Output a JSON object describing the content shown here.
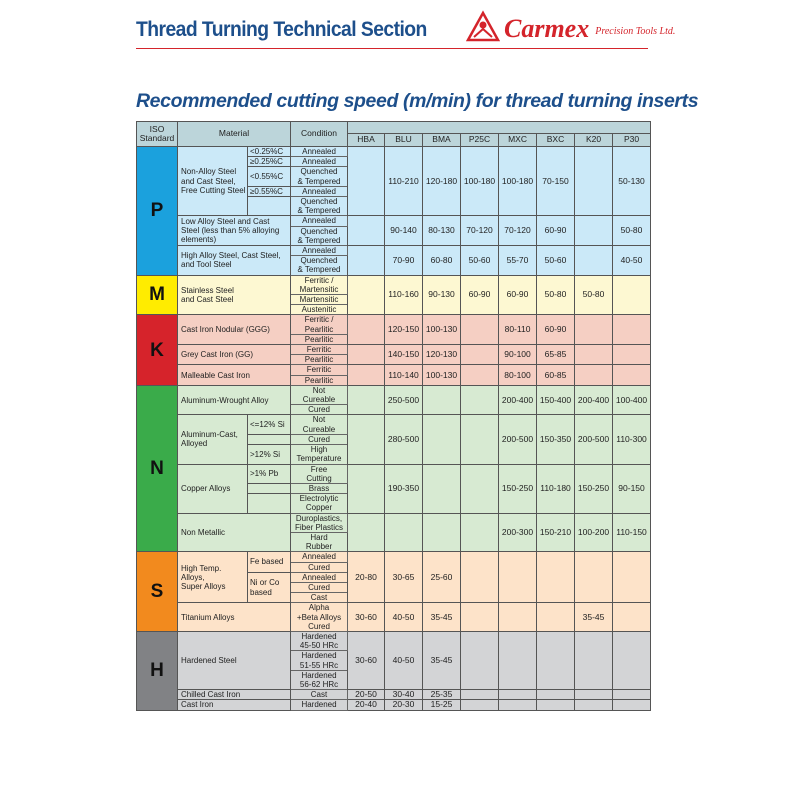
{
  "header": {
    "title": "Thread Turning Technical Section",
    "logo_name": "Carmex",
    "logo_sub": "Precision Tools Ltd."
  },
  "heading": "Recommended cutting speed (m/min) for thread turning inserts",
  "table": {
    "col_iso": "ISO\nStandard",
    "col_material": "Material",
    "col_condition": "Condition",
    "grades": [
      "HBA",
      "BLU",
      "BMA",
      "P25C",
      "MXC",
      "BXC",
      "K20",
      "P30"
    ],
    "groups": [
      {
        "iso": "P",
        "color": "#1ba1dd",
        "bg": "#cbe9f8",
        "materials": [
          {
            "name": "Non-Alloy Steel\nand Cast Steel,\nFree Cutting Steel",
            "subs": [
              {
                "label": "<0.25%C",
                "conditions": [
                  "Annealed"
                ]
              },
              {
                "label": "≥0.25%C",
                "conditions": [
                  "Annealed"
                ]
              },
              {
                "label": "<0.55%C",
                "conditions": [
                  "Quenched\n& Tempered"
                ]
              },
              {
                "label": "≥0.55%C",
                "conditions": [
                  "Annealed"
                ]
              },
              {
                "label": "",
                "conditions": [
                  "Quenched\n& Tempered"
                ]
              }
            ],
            "speeds": [
              "",
              "110-210",
              "120-180",
              "100-180",
              "100-180",
              "70-150",
              "",
              "50-130"
            ]
          },
          {
            "name": "Low Alloy Steel and Cast\nSteel (less than 5% alloying\nelements)",
            "conditions": [
              "Annealed",
              "Quenched\n& Tempered"
            ],
            "speeds": [
              "",
              "90-140",
              "80-130",
              "70-120",
              "70-120",
              "60-90",
              "",
              "50-80"
            ]
          },
          {
            "name": "High Alloy Steel, Cast Steel,\nand Tool Steel",
            "conditions": [
              "Annealed",
              "Quenched\n& Tempered"
            ],
            "speeds": [
              "",
              "70-90",
              "60-80",
              "50-60",
              "55-70",
              "50-60",
              "",
              "40-50"
            ]
          }
        ]
      },
      {
        "iso": "M",
        "color": "#ffec00",
        "bg": "#fdf8d2",
        "materials": [
          {
            "name": "Stainless Steel\nand Cast Steel",
            "conditions": [
              "Ferritic /\nMartensitic",
              "Martensitic",
              "Austenitic"
            ],
            "speeds": [
              "",
              "110-160",
              "90-130",
              "60-90",
              "60-90",
              "50-80",
              "50-80",
              ""
            ]
          }
        ]
      },
      {
        "iso": "K",
        "color": "#d6232b",
        "bg": "#f5cfc3",
        "materials": [
          {
            "name": "Cast Iron Nodular (GGG)",
            "conditions": [
              "Ferritic /\nPearlitic",
              "Pearlitic"
            ],
            "speeds": [
              "",
              "120-150",
              "100-130",
              "",
              "80-110",
              "60-90",
              "",
              ""
            ]
          },
          {
            "name": "Grey Cast Iron (GG)",
            "conditions": [
              "Ferritic",
              "Pearlitic"
            ],
            "speeds": [
              "",
              "140-150",
              "120-130",
              "",
              "90-100",
              "65-85",
              "",
              ""
            ]
          },
          {
            "name": "Malleable Cast Iron",
            "conditions": [
              "Ferritic",
              "Pearlitic"
            ],
            "speeds": [
              "",
              "110-140",
              "100-130",
              "",
              "80-100",
              "60-85",
              "",
              ""
            ]
          }
        ]
      },
      {
        "iso": "N",
        "color": "#3aab4a",
        "bg": "#d7ead2",
        "materials": [
          {
            "name": "Aluminum-Wrought Alloy",
            "conditions": [
              "Not\nCureable",
              "Cured"
            ],
            "speeds": [
              "",
              "250-500",
              "",
              "",
              "200-400",
              "150-400",
              "200-400",
              "100-400"
            ]
          },
          {
            "name": "Aluminum-Cast,\nAlloyed",
            "subs": [
              {
                "label": "<=12% Si",
                "conditions": [
                  "Not\nCureable"
                ]
              },
              {
                "label": "",
                "conditions": [
                  "Cured"
                ]
              },
              {
                "label": ">12% Si",
                "conditions": [
                  "High\nTemperature"
                ]
              }
            ],
            "speeds": [
              "",
              "280-500",
              "",
              "",
              "200-500",
              "150-350",
              "200-500",
              "110-300"
            ]
          },
          {
            "name": "Copper Alloys",
            "subs": [
              {
                "label": ">1% Pb",
                "conditions": [
                  "Free\nCutting"
                ]
              },
              {
                "label": "",
                "conditions": [
                  "Brass"
                ]
              },
              {
                "label": "",
                "conditions": [
                  "Electrolytic\nCopper"
                ]
              }
            ],
            "speeds": [
              "",
              "190-350",
              "",
              "",
              "150-250",
              "110-180",
              "150-250",
              "90-150"
            ]
          },
          {
            "name": "Non Metallic",
            "conditions": [
              "Duroplastics,\nFiber Plastics",
              "Hard\nRubber"
            ],
            "speeds": [
              "",
              "",
              "",
              "",
              "200-300",
              "150-210",
              "100-200",
              "110-150"
            ]
          }
        ]
      },
      {
        "iso": "S",
        "color": "#f28a1e",
        "bg": "#fde3c9",
        "materials": [
          {
            "name": "High Temp. Alloys,\nSuper Alloys",
            "subs": [
              {
                "label": "Fe based",
                "conditions": [
                  "Annealed",
                  "Cured"
                ]
              },
              {
                "label": "Ni or Co\nbased",
                "conditions": [
                  "Annealed",
                  "Cured",
                  "Cast"
                ]
              }
            ],
            "speeds": [
              "20-80",
              "30-65",
              "25-60",
              "",
              "",
              "",
              "",
              ""
            ]
          },
          {
            "name": "Titanium Alloys",
            "conditions": [
              "Alpha\n+Beta Alloys\nCured"
            ],
            "speeds": [
              "30-60",
              "40-50",
              "35-45",
              "",
              "",
              "",
              "35-45",
              ""
            ]
          }
        ]
      },
      {
        "iso": "H",
        "color": "#818285",
        "bg": "#d3d4d6",
        "materials": [
          {
            "name": "Hardened Steel",
            "conditions": [
              "Hardened\n45-50 HRc",
              "Hardened\n51-55 HRc",
              "Hardened\n56-62 HRc"
            ],
            "speeds": [
              "30-60",
              "40-50",
              "35-45",
              "",
              "",
              "",
              "",
              ""
            ]
          },
          {
            "name": "Chilled Cast Iron",
            "conditions": [
              "Cast"
            ],
            "speeds": [
              "20-50",
              "30-40",
              "25-35",
              "",
              "",
              "",
              "",
              ""
            ]
          },
          {
            "name": "Cast Iron",
            "conditions": [
              "Hardened"
            ],
            "speeds": [
              "20-40",
              "20-30",
              "15-25",
              "",
              "",
              "",
              "",
              ""
            ]
          }
        ]
      }
    ]
  }
}
